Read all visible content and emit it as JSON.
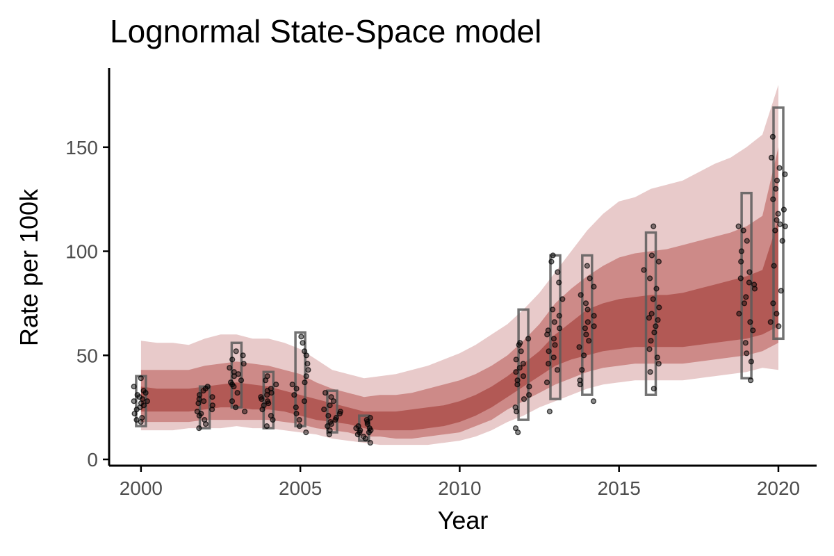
{
  "chart_data": {
    "type": "area",
    "title": "Lognormal State-Space model",
    "xlabel": "Year",
    "ylabel": "Rate per 100k",
    "xlim": [
      1999.0,
      2021.2
    ],
    "ylim": [
      -3,
      188
    ],
    "x_ticks": [
      2000,
      2005,
      2010,
      2015,
      2020
    ],
    "x_tick_labels": [
      "2000",
      "2005",
      "2010",
      "2015",
      "2020"
    ],
    "y_ticks": [
      0,
      50,
      100,
      150
    ],
    "y_tick_labels": [
      "0",
      "50",
      "100",
      "150"
    ],
    "grid": false,
    "colors": {
      "band_outer": "#e8caca",
      "band_middle": "#cd8a88",
      "band_inner": "#b25955",
      "points": "#000000",
      "boxes": "#5a5a5a",
      "axis": "#000000",
      "tick_labels": "#4d4d4d"
    },
    "bands": {
      "x": [
        2000,
        2000.5,
        2001,
        2001.5,
        2002,
        2002.5,
        2003,
        2003.5,
        2004,
        2004.5,
        2005,
        2005.5,
        2006,
        2006.5,
        2007,
        2007.5,
        2008,
        2008.5,
        2009,
        2009.5,
        2010,
        2010.5,
        2011,
        2011.5,
        2012,
        2012.5,
        2013,
        2013.5,
        2014,
        2014.5,
        2015,
        2015.5,
        2016,
        2016.5,
        2017,
        2017.5,
        2018,
        2018.5,
        2019,
        2019.5,
        2020
      ],
      "outer_upper": [
        57,
        56,
        56,
        55,
        58,
        60,
        60,
        58,
        58,
        56,
        53,
        48,
        43,
        41,
        39,
        40,
        41,
        43,
        45,
        48,
        51,
        55,
        60,
        65,
        72,
        80,
        90,
        100,
        110,
        118,
        124,
        126,
        130,
        132,
        134,
        138,
        142,
        145,
        150,
        156,
        180
      ],
      "middle_upper": [
        43,
        43,
        43,
        43,
        45,
        46,
        47,
        46,
        45,
        43,
        41,
        37,
        34,
        32,
        30,
        31,
        31,
        32,
        34,
        36,
        38,
        41,
        45,
        50,
        57,
        65,
        75,
        82,
        88,
        93,
        97,
        99,
        100,
        101,
        103,
        105,
        107,
        109,
        112,
        117,
        150
      ],
      "inner_upper": [
        35,
        34,
        34,
        34,
        35,
        36,
        37,
        36,
        35,
        33,
        31,
        29,
        27,
        25,
        23,
        23,
        23,
        24,
        25,
        26,
        28,
        31,
        35,
        40,
        46,
        52,
        60,
        66,
        72,
        75,
        77,
        78,
        79,
        79,
        80,
        82,
        84,
        86,
        88,
        91,
        115
      ],
      "inner_lower": [
        23,
        23,
        23,
        23,
        24,
        25,
        25,
        24,
        24,
        23,
        21,
        19,
        18,
        17,
        15,
        14,
        14,
        14,
        15,
        16,
        18,
        21,
        25,
        30,
        35,
        40,
        45,
        48,
        50,
        52,
        53,
        54,
        54,
        54,
        54,
        55,
        56,
        57,
        58,
        60,
        64
      ],
      "middle_lower": [
        18,
        18,
        18,
        18,
        19,
        19,
        19,
        19,
        19,
        18,
        17,
        15,
        14,
        13,
        11,
        11,
        10,
        10,
        11,
        12,
        13,
        16,
        19,
        24,
        28,
        32,
        36,
        39,
        42,
        44,
        45,
        46,
        46,
        46,
        46,
        47,
        48,
        49,
        50,
        52,
        56
      ],
      "outer_lower": [
        14,
        14,
        14,
        15,
        15,
        15,
        16,
        15,
        15,
        14,
        13,
        12,
        10,
        9,
        8,
        7,
        7,
        7,
        7,
        8,
        9,
        11,
        14,
        18,
        21,
        25,
        28,
        31,
        34,
        36,
        37,
        38,
        38,
        38,
        38,
        39,
        40,
        41,
        42,
        44,
        43
      ]
    },
    "boxes": [
      {
        "x": 2000,
        "low": 16,
        "high": 40
      },
      {
        "x": 2002,
        "low": 15,
        "high": 35
      },
      {
        "x": 2003,
        "low": 25,
        "high": 56
      },
      {
        "x": 2004,
        "low": 15,
        "high": 42
      },
      {
        "x": 2005,
        "low": 16,
        "high": 61
      },
      {
        "x": 2006,
        "low": 13,
        "high": 33
      },
      {
        "x": 2007,
        "low": 9,
        "high": 21
      },
      {
        "x": 2012,
        "low": 19,
        "high": 72
      },
      {
        "x": 2013,
        "low": 29,
        "high": 98
      },
      {
        "x": 2014,
        "low": 31,
        "high": 98
      },
      {
        "x": 2016,
        "low": 31,
        "high": 109
      },
      {
        "x": 2019,
        "low": 39,
        "high": 128
      },
      {
        "x": 2020,
        "low": 58,
        "high": 169
      }
    ],
    "points": [
      {
        "x": 2000,
        "values": [
          18,
          20,
          22,
          24,
          25,
          27,
          28,
          28,
          29,
          30,
          31,
          32,
          33,
          35,
          39,
          19,
          26
        ]
      },
      {
        "x": 2002,
        "values": [
          15,
          17,
          19,
          21,
          23,
          24,
          26,
          27,
          28,
          30,
          31,
          33,
          34,
          35,
          22,
          29
        ]
      },
      {
        "x": 2003,
        "values": [
          23,
          25,
          28,
          32,
          35,
          37,
          38,
          40,
          42,
          44,
          46,
          48,
          50,
          52,
          36,
          41
        ]
      },
      {
        "x": 2004,
        "values": [
          16,
          19,
          21,
          24,
          26,
          28,
          29,
          30,
          31,
          32,
          34,
          36,
          38,
          40,
          27,
          33
        ]
      },
      {
        "x": 2005,
        "values": [
          13,
          16,
          19,
          22,
          25,
          28,
          31,
          34,
          37,
          40,
          43,
          46,
          50,
          52,
          56,
          59,
          36
        ]
      },
      {
        "x": 2006,
        "values": [
          12,
          14,
          16,
          18,
          19,
          20,
          21,
          22,
          24,
          26,
          28,
          30,
          32,
          23,
          17
        ]
      },
      {
        "x": 2007,
        "values": [
          8,
          10,
          11,
          12,
          13,
          14,
          14,
          15,
          16,
          17,
          18,
          19,
          20,
          13,
          15
        ]
      },
      {
        "x": 2012,
        "values": [
          13,
          15,
          23,
          25,
          29,
          31,
          35,
          38,
          40,
          42,
          44,
          46,
          48,
          52,
          55,
          56,
          58,
          36
        ]
      },
      {
        "x": 2013,
        "values": [
          23,
          37,
          43,
          46,
          49,
          52,
          55,
          58,
          60,
          63,
          66,
          69,
          72,
          77,
          85,
          90,
          95,
          98,
          62
        ]
      },
      {
        "x": 2014,
        "values": [
          28,
          36,
          38,
          43,
          50,
          54,
          57,
          60,
          63,
          66,
          69,
          72,
          75,
          79,
          83,
          87,
          93,
          64
        ]
      },
      {
        "x": 2016,
        "values": [
          34,
          42,
          46,
          49,
          53,
          57,
          61,
          64,
          67,
          70,
          73,
          77,
          82,
          87,
          91,
          95,
          98,
          112,
          68
        ]
      },
      {
        "x": 2019,
        "values": [
          38,
          47,
          51,
          56,
          62,
          66,
          70,
          75,
          78,
          82,
          85,
          87,
          90,
          95,
          100,
          105,
          110,
          112,
          84
        ]
      },
      {
        "x": 2020,
        "values": [
          64,
          66,
          70,
          75,
          81,
          93,
          105,
          110,
          112,
          113,
          115,
          120,
          125,
          130,
          134,
          137,
          140,
          145,
          155,
          118
        ]
      }
    ]
  }
}
